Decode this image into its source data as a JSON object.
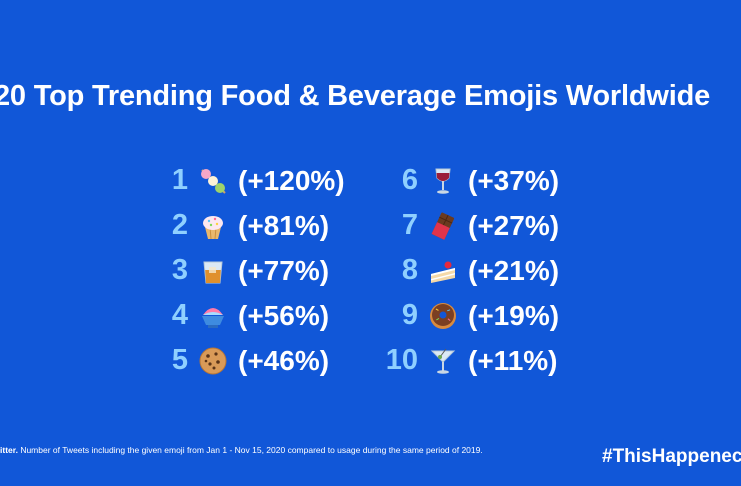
{
  "title": "20 Top Trending Food & Beverage Emojis Worldwide",
  "left_items": [
    {
      "rank": "1",
      "icon": "dango-icon",
      "change": "(+120%)"
    },
    {
      "rank": "2",
      "icon": "cupcake-icon",
      "change": "(+81%)"
    },
    {
      "rank": "3",
      "icon": "tumbler-glass-icon",
      "change": "(+77%)"
    },
    {
      "rank": "4",
      "icon": "shaved-ice-icon",
      "change": "(+56%)"
    },
    {
      "rank": "5",
      "icon": "cookie-icon",
      "change": "(+46%)"
    }
  ],
  "right_items": [
    {
      "rank": "6",
      "icon": "wine-glass-icon",
      "change": "(+37%)"
    },
    {
      "rank": "7",
      "icon": "chocolate-bar-icon",
      "change": "(+27%)"
    },
    {
      "rank": "8",
      "icon": "shortcake-icon",
      "change": "(+21%)"
    },
    {
      "rank": "9",
      "icon": "doughnut-icon",
      "change": "(+19%)"
    },
    {
      "rank": "10",
      "icon": "cocktail-glass-icon",
      "change": "(+11%)"
    }
  ],
  "footer": {
    "source_prefix": "itter.",
    "source_text": " Number of Tweets including the given emoji from Jan 1 - Nov 15, 2020 compared to usage during the same period of 2019.",
    "hashtag": "#ThisHappenec"
  },
  "colors": {
    "background": "#1157d8",
    "rank": "#8fd0ff",
    "text": "#ffffff"
  }
}
